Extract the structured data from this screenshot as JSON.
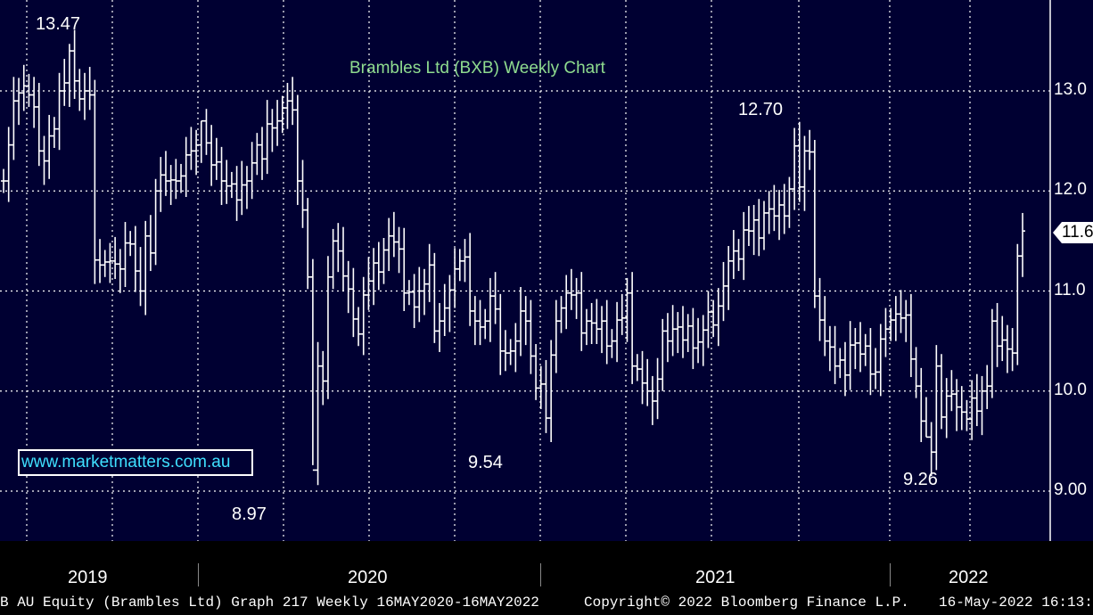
{
  "chart_data": {
    "type": "bar",
    "subtype": "ohlc",
    "title": "Brambles Ltd (BXB) Weekly Chart",
    "watermark": "www.marketmatters.com.au",
    "y_ticks": [
      "13.0",
      "12.0",
      "11.6",
      "11.0",
      "10.0",
      "9.00"
    ],
    "ylim": [
      8.55,
      13.9
    ],
    "grid": true,
    "x_labels": [
      "2019",
      "2020",
      "2021",
      "2022"
    ],
    "last_price": "11.6",
    "annotations": [
      {
        "text": "13.47",
        "value": 13.47
      },
      {
        "text": "8.97",
        "value": 8.97
      },
      {
        "text": "9.54",
        "value": 9.54
      },
      {
        "text": "12.70",
        "value": 12.7
      },
      {
        "text": "9.26",
        "value": 9.26
      }
    ],
    "series": [
      {
        "values": [
          12.1,
          12.46,
          12.9,
          12.98,
          13.05,
          12.96,
          12.84,
          12.4,
          12.3,
          12.55,
          12.62,
          13.0,
          13.08,
          13.4,
          13.1,
          12.92,
          13.0,
          12.96,
          11.31,
          11.26,
          11.29,
          11.3,
          11.27,
          11.22,
          11.48,
          11.47,
          11.2,
          11.0,
          11.55,
          11.38,
          12.0,
          12.16,
          12.1,
          12.11,
          12.1,
          12.15,
          12.36,
          12.4,
          12.46,
          12.7,
          12.48,
          12.26,
          12.29,
          12.1,
          12.05,
          12.07,
          11.91,
          12.06,
          12.1,
          12.28,
          12.46,
          12.32,
          12.67,
          12.63,
          12.7,
          12.83,
          12.9,
          12.81,
          12.1,
          11.81,
          11.14,
          9.21,
          10.25,
          10.1,
          11.14,
          11.5,
          11.4,
          11.15,
          11.02,
          10.72,
          10.57,
          10.96,
          11.1,
          11.28,
          11.19,
          11.41,
          11.55,
          11.49,
          11.42,
          10.98,
          10.99,
          10.84,
          11.0,
          11.07,
          11.26,
          10.6,
          10.7,
          10.83,
          11.01,
          11.22,
          11.3,
          11.34,
          10.8,
          10.7,
          10.64,
          10.7,
          10.95,
          10.82,
          10.4,
          10.38,
          10.4,
          10.5,
          10.8,
          10.7,
          10.35,
          10.03,
          10.07,
          9.73,
          10.36,
          10.7,
          10.83,
          10.98,
          10.96,
          10.98,
          10.58,
          10.7,
          10.68,
          10.62,
          10.7,
          10.45,
          10.5,
          10.71,
          10.73,
          10.98,
          10.25,
          10.22,
          10.08,
          10.0,
          9.9,
          10.12,
          10.6,
          10.5,
          10.62,
          10.64,
          10.51,
          10.65,
          10.43,
          10.49,
          10.61,
          10.79,
          10.66,
          10.85,
          11.05,
          11.3,
          11.4,
          11.32,
          11.61,
          11.6,
          11.71,
          11.53,
          11.78,
          11.82,
          11.75,
          11.86,
          11.75,
          12.02,
          12.45,
          12.04,
          12.4,
          12.39,
          10.95,
          10.71,
          10.5,
          10.44,
          10.25,
          10.31,
          10.16,
          10.46,
          10.48,
          10.37,
          10.45,
          10.17,
          10.19,
          10.52,
          10.62,
          10.71,
          10.77,
          10.73,
          10.76,
          10.32,
          10.05,
          9.7,
          9.54,
          9.39,
          10.25,
          9.74,
          9.95,
          9.97,
          9.84,
          9.79,
          9.72,
          9.93,
          9.8,
          10.0,
          10.05,
          10.7,
          10.45,
          10.51,
          10.42,
          10.38,
          11.35,
          11.6
        ]
      }
    ]
  },
  "price_tag": "11.6",
  "footer": {
    "left": "B AU Equity (Brambles Ltd) Graph 217  Weekly 16MAY2020-16MAY2022",
    "copyright": "Copyright© 2022 Bloomberg Finance L.P.",
    "timestamp": "16-May-2022 16:13:"
  },
  "colors": {
    "background": "#000032",
    "bars": "#ffffff",
    "grid": "#ffffff",
    "title": "#8fdc8f",
    "website": "#3fe0ff"
  }
}
